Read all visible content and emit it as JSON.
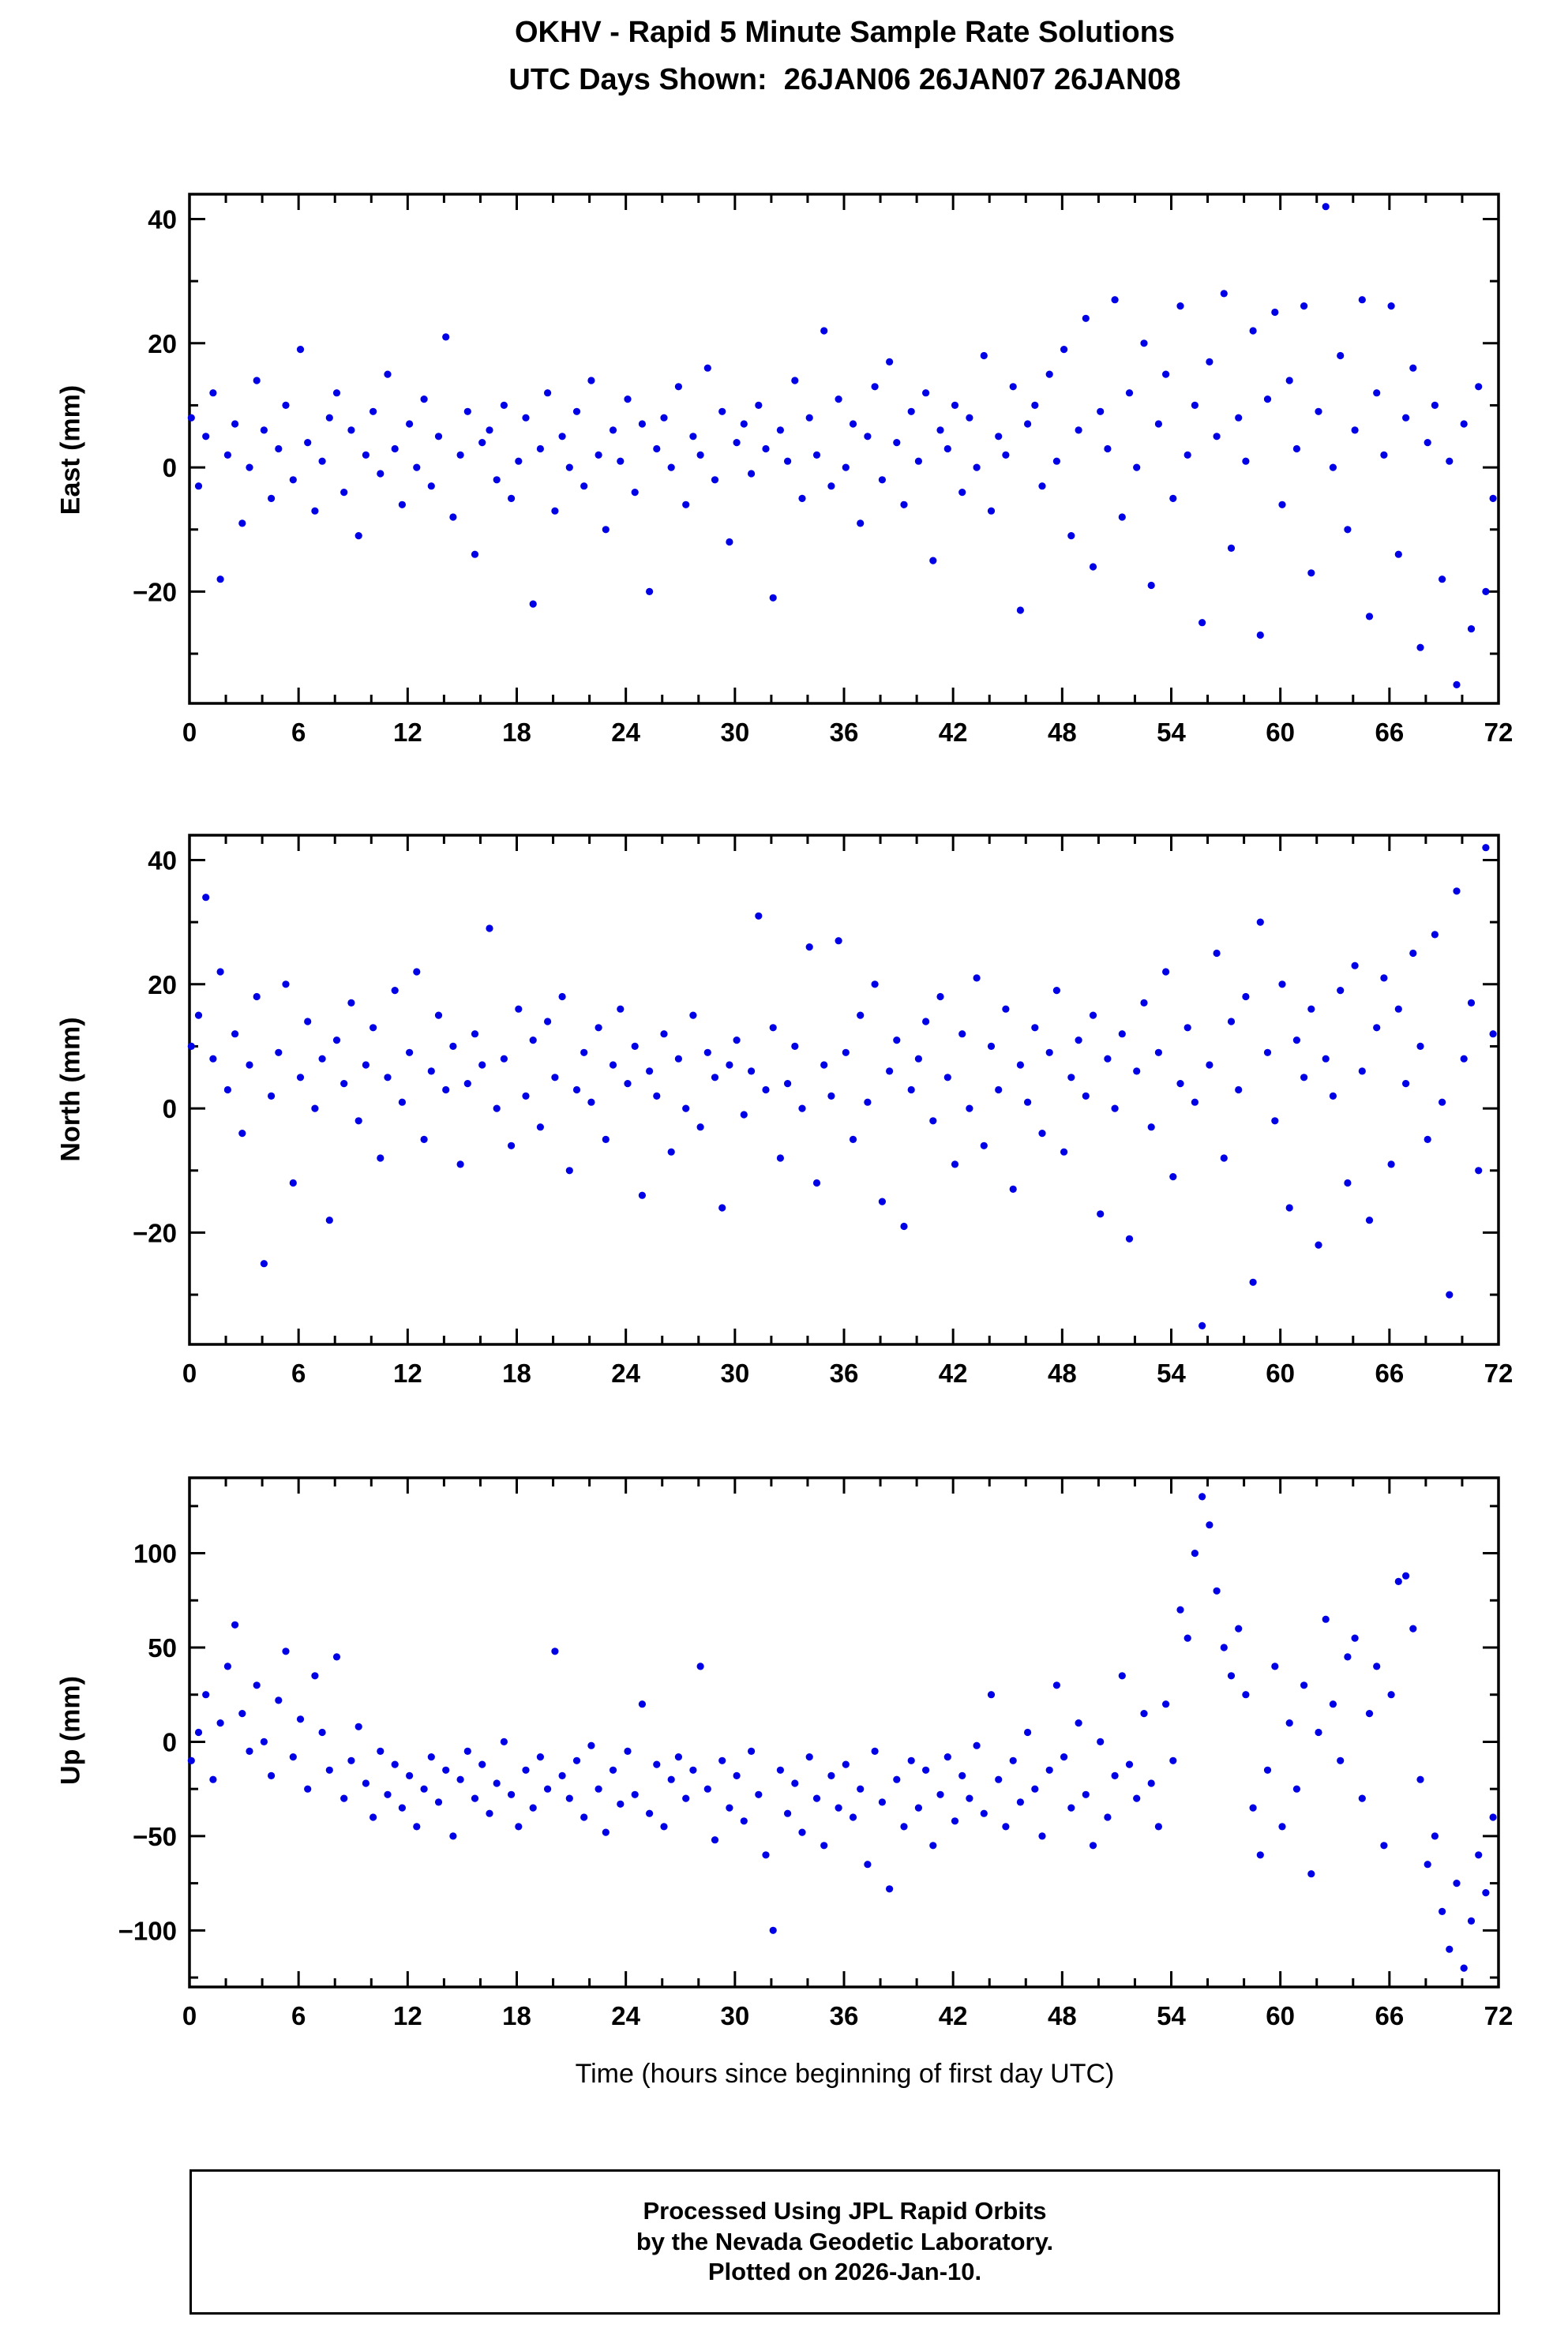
{
  "title": "OKHV - Rapid 5 Minute Sample Rate Solutions",
  "subtitle": "UTC Days Shown:  26JAN06 26JAN07 26JAN08",
  "footer": {
    "line1": "Processed Using JPL Rapid Orbits",
    "line2": "by the Nevada Geodetic Laboratory.",
    "line3": "Plotted on 2026-Jan-10."
  },
  "chart_data": [
    {
      "type": "scatter",
      "title": "",
      "ylabel": "East (mm)",
      "xlabel": "",
      "marker_color": "#0000e6",
      "grid": false,
      "x_axis": {
        "min": 0,
        "max": 72,
        "major_tick": 6,
        "minor_tick": 2
      },
      "y_axis": {
        "min": -38,
        "max": 44,
        "major_ticks": [
          -20,
          0,
          20,
          40
        ],
        "minor_tick": 10
      },
      "x_start": 0.1,
      "x_step": 0.4,
      "values": [
        8,
        -3,
        5,
        12,
        -18,
        2,
        7,
        -9,
        0,
        14,
        6,
        -5,
        3,
        10,
        -2,
        19,
        4,
        -7,
        1,
        8,
        12,
        -4,
        6,
        -11,
        2,
        9,
        -1,
        15,
        3,
        -6,
        7,
        0,
        11,
        -3,
        5,
        21,
        -8,
        2,
        9,
        -14,
        4,
        6,
        -2,
        10,
        -5,
        1,
        8,
        -22,
        3,
        12,
        -7,
        5,
        0,
        9,
        -3,
        14,
        2,
        -10,
        6,
        1,
        11,
        -4,
        7,
        -20,
        3,
        8,
        0,
        13,
        -6,
        5,
        2,
        16,
        -2,
        9,
        -12,
        4,
        7,
        -1,
        10,
        3,
        -21,
        6,
        1,
        14,
        -5,
        8,
        2,
        22,
        -3,
        11,
        0,
        7,
        -9,
        5,
        13,
        -2,
        17,
        4,
        -6,
        9,
        1,
        12,
        -15,
        6,
        3,
        10,
        -4,
        8,
        0,
        18,
        -7,
        5,
        2,
        13,
        -23,
        7,
        10,
        -3,
        15,
        1,
        19,
        -11,
        6,
        24,
        -16,
        9,
        3,
        27,
        -8,
        12,
        0,
        20,
        -19,
        7,
        15,
        -5,
        26,
        2,
        10,
        -25,
        17,
        5,
        28,
        -13,
        8,
        1,
        22,
        -27,
        11,
        25,
        -6,
        14,
        3,
        26,
        -17,
        9,
        42,
        0,
        18,
        -10,
        6,
        27,
        -24,
        12,
        2,
        26,
        -14,
        8,
        16,
        -29,
        4,
        10,
        -18,
        1,
        -35,
        7,
        -26,
        13,
        -20,
        -5
      ]
    },
    {
      "type": "scatter",
      "title": "",
      "ylabel": "North (mm)",
      "xlabel": "",
      "marker_color": "#0000e6",
      "grid": false,
      "x_axis": {
        "min": 0,
        "max": 72,
        "major_tick": 6,
        "minor_tick": 2
      },
      "y_axis": {
        "min": -38,
        "max": 44,
        "major_ticks": [
          -20,
          0,
          20,
          40
        ],
        "minor_tick": 10
      },
      "x_start": 0.1,
      "x_step": 0.4,
      "values": [
        10,
        15,
        34,
        8,
        22,
        3,
        12,
        -4,
        7,
        18,
        -25,
        2,
        9,
        20,
        -12,
        5,
        14,
        0,
        8,
        -18,
        11,
        4,
        17,
        -2,
        7,
        13,
        -8,
        5,
        19,
        1,
        9,
        22,
        -5,
        6,
        15,
        3,
        10,
        -9,
        4,
        12,
        7,
        29,
        0,
        8,
        -6,
        16,
        2,
        11,
        -3,
        14,
        5,
        18,
        -10,
        3,
        9,
        1,
        13,
        -5,
        7,
        16,
        4,
        10,
        -14,
        6,
        2,
        12,
        -7,
        8,
        0,
        15,
        -3,
        9,
        5,
        -16,
        7,
        11,
        -1,
        6,
        31,
        3,
        13,
        -8,
        4,
        10,
        0,
        26,
        -12,
        7,
        2,
        27,
        9,
        -5,
        15,
        1,
        20,
        -15,
        6,
        11,
        -19,
        3,
        8,
        14,
        -2,
        18,
        5,
        -9,
        12,
        0,
        21,
        -6,
        10,
        3,
        16,
        -13,
        7,
        1,
        13,
        -4,
        9,
        19,
        -7,
        5,
        11,
        2,
        15,
        -17,
        8,
        0,
        12,
        -21,
        6,
        17,
        -3,
        9,
        22,
        -11,
        4,
        13,
        1,
        -35,
        7,
        25,
        -8,
        14,
        3,
        18,
        -28,
        30,
        9,
        -2,
        20,
        -16,
        11,
        5,
        16,
        -22,
        8,
        2,
        19,
        -12,
        23,
        6,
        -18,
        13,
        21,
        -9,
        16,
        4,
        25,
        10,
        -5,
        28,
        1,
        -30,
        35,
        8,
        17,
        -10,
        42,
        12
      ]
    },
    {
      "type": "scatter",
      "title": "",
      "ylabel": "Up (mm)",
      "xlabel": "Time (hours since beginning of first day UTC)",
      "marker_color": "#0000e6",
      "grid": false,
      "x_axis": {
        "min": 0,
        "max": 72,
        "major_tick": 6,
        "minor_tick": 2
      },
      "y_axis": {
        "min": -130,
        "max": 140,
        "major_ticks": [
          -100,
          -50,
          0,
          50,
          100
        ],
        "minor_tick": 25
      },
      "x_start": 0.1,
      "x_step": 0.4,
      "values": [
        -10,
        5,
        25,
        -20,
        10,
        40,
        62,
        15,
        -5,
        30,
        0,
        -18,
        22,
        48,
        -8,
        12,
        -25,
        35,
        5,
        -15,
        45,
        -30,
        -10,
        8,
        -22,
        -40,
        -5,
        -28,
        -12,
        -35,
        -18,
        -45,
        -25,
        -8,
        -32,
        -15,
        -50,
        -20,
        -5,
        -30,
        -12,
        -38,
        -22,
        0,
        -28,
        -45,
        -15,
        -35,
        -8,
        -25,
        48,
        -18,
        -30,
        -10,
        -40,
        -2,
        -25,
        -48,
        -15,
        -33,
        -5,
        -28,
        20,
        -38,
        -12,
        -45,
        -20,
        -8,
        -30,
        -15,
        40,
        -25,
        -52,
        -10,
        -35,
        -18,
        -42,
        -5,
        -28,
        -60,
        -100,
        -15,
        -38,
        -22,
        -48,
        -8,
        -30,
        -55,
        -18,
        -35,
        -12,
        -40,
        -25,
        -65,
        -5,
        -32,
        -78,
        -20,
        -45,
        -10,
        -35,
        -15,
        -55,
        -28,
        -8,
        -42,
        -18,
        -30,
        -2,
        -38,
        25,
        -20,
        -45,
        -10,
        -32,
        5,
        -25,
        -50,
        -15,
        30,
        -8,
        -35,
        10,
        -28,
        -55,
        0,
        -40,
        -18,
        35,
        -12,
        -30,
        15,
        -22,
        -45,
        20,
        -10,
        70,
        55,
        100,
        130,
        115,
        80,
        50,
        35,
        60,
        25,
        -35,
        -60,
        -15,
        40,
        -45,
        10,
        -25,
        30,
        -70,
        5,
        65,
        20,
        -10,
        45,
        55,
        -30,
        15,
        40,
        -55,
        25,
        85,
        88,
        60,
        -20,
        -65,
        -50,
        -90,
        -110,
        -75,
        -120,
        -95,
        -60,
        -80,
        -40
      ]
    }
  ]
}
